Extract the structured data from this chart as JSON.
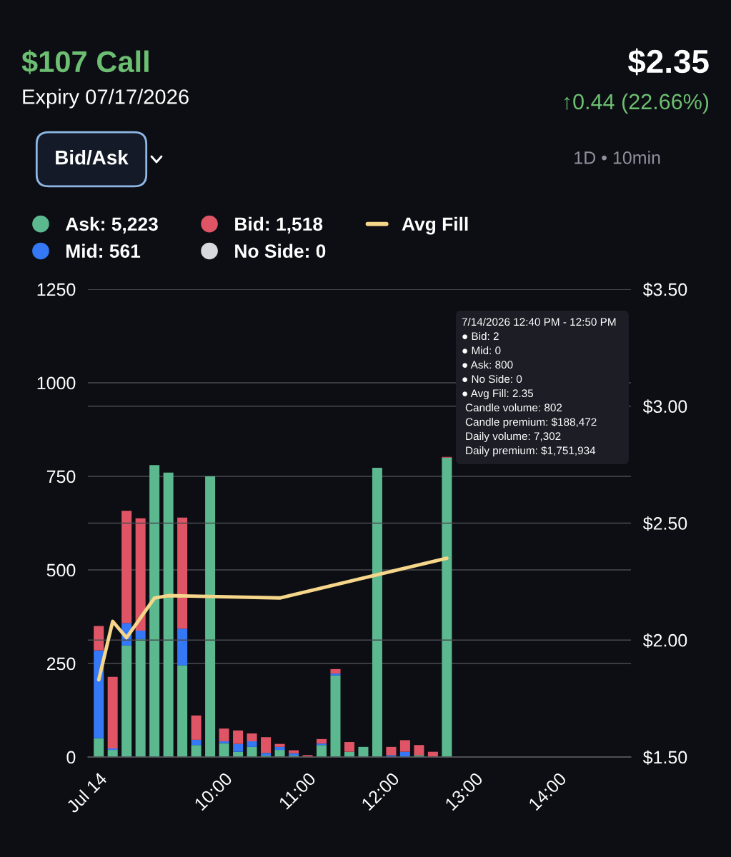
{
  "chart_data": {
    "type": "bar",
    "title": "$107 Call",
    "subtitle": "Expiry 07/17/2026",
    "stacked": true,
    "x": [
      8.5,
      8.6667,
      8.8333,
      9.0,
      9.1667,
      9.3333,
      9.5,
      9.6667,
      9.8333,
      10.0,
      10.1667,
      10.3333,
      10.5,
      10.6667,
      10.8333,
      11.0,
      11.1667,
      11.3333,
      11.5,
      11.6667,
      11.8333,
      12.0,
      12.1667,
      12.3333,
      12.5,
      12.6667
    ],
    "series": [
      {
        "name": "Ask: 5,223",
        "color": "#5bb88f",
        "values": [
          50,
          19,
          298,
          315,
          780,
          760,
          245,
          32,
          750,
          37,
          14,
          27,
          4,
          19,
          4,
          0,
          32,
          218,
          14,
          27,
          773,
          0,
          0,
          5,
          0,
          800
        ]
      },
      {
        "name": "Mid: 561",
        "color": "#3478f6",
        "values": [
          235,
          4,
          60,
          23,
          0,
          0,
          98,
          14,
          0,
          5,
          21,
          15,
          7,
          8,
          6,
          0,
          4,
          5,
          0,
          0,
          0,
          5,
          14,
          0,
          0,
          0
        ]
      },
      {
        "name": "Bid: 1,518",
        "color": "#e05565",
        "values": [
          65,
          191,
          300,
          300,
          0,
          0,
          297,
          65,
          0,
          34,
          36,
          21,
          42,
          8,
          8,
          5,
          12,
          12,
          26,
          0,
          0,
          22,
          31,
          27,
          14,
          2
        ]
      },
      {
        "name": "No Side: 0",
        "color": "#d8d9de",
        "values": [
          0,
          0,
          0,
          0,
          0,
          0,
          0,
          0,
          0,
          0,
          0,
          0,
          0,
          0,
          0,
          0,
          0,
          0,
          0,
          0,
          0,
          0,
          0,
          0,
          0,
          0
        ]
      },
      {
        "name": "Avg Fill",
        "type": "line",
        "axis": "y2",
        "color": "#f5d68a",
        "values": [
          1.83,
          2.08,
          2.01,
          null,
          2.18,
          2.19,
          null,
          null,
          null,
          null,
          null,
          null,
          null,
          2.18,
          null,
          null,
          null,
          null,
          null,
          null,
          null,
          null,
          null,
          null,
          null,
          2.35
        ]
      }
    ],
    "xlim": [
      8.37,
      14.87
    ],
    "xticks": [
      {
        "value": 8.5,
        "label": "Jul 14"
      },
      {
        "value": 10,
        "label": "10:00"
      },
      {
        "value": 11,
        "label": "11:00"
      },
      {
        "value": 12,
        "label": "12:00"
      },
      {
        "value": 13,
        "label": "13:00"
      },
      {
        "value": 14,
        "label": "14:00"
      }
    ],
    "ylim": [
      0,
      1250
    ],
    "yticks": [
      0,
      250,
      500,
      750,
      1000,
      1250
    ],
    "y2lim": [
      1.5,
      3.5
    ],
    "y2ticks": [
      {
        "value": 1.5,
        "label": "$1.50"
      },
      {
        "value": 2.0,
        "label": "$2.00"
      },
      {
        "value": 2.5,
        "label": "$2.50"
      },
      {
        "value": 3.0,
        "label": "$3.00"
      },
      {
        "value": 3.5,
        "label": "$3.50"
      }
    ],
    "grid": "y",
    "legend": "top",
    "line_style": "solid",
    "annotations": [
      "$2.35",
      "↑0.44 (22.66%)",
      "Bid/Ask",
      "1D • 10min",
      "7/14/2026 12:40 PM - 12:50 PM",
      "● Bid: 2",
      "● Mid: 0",
      "● Ask: 800",
      "● No Side: 0",
      "● Avg Fill: 2.35",
      "Candle volume: 802",
      "Candle premium: $188,472",
      "Daily volume: 7,302",
      "Daily premium: $1,751,934"
    ]
  }
}
